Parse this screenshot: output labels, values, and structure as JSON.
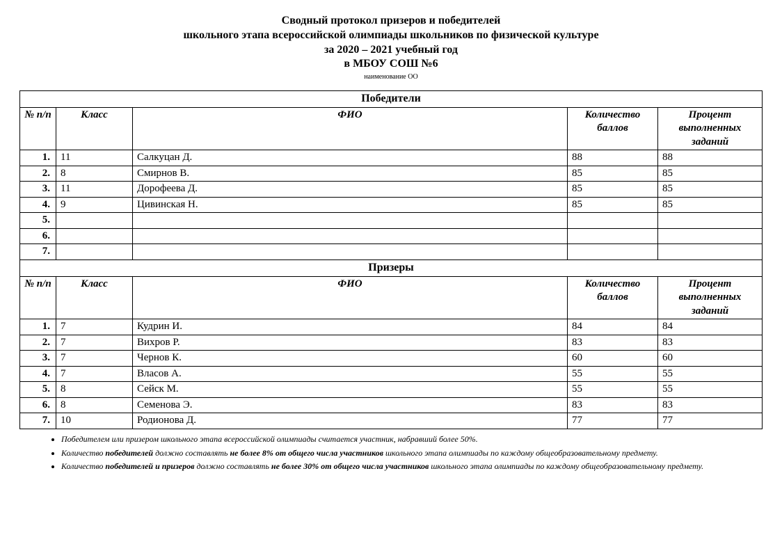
{
  "header": {
    "line1": "Сводный протокол призеров и победителей",
    "line2": "школьного этапа всероссийской олимпиады школьников по физической культуре",
    "line3": "за 2020 – 2021 учебный год",
    "line4": "в  МБОУ СОШ №6",
    "sub": "наименование ОО"
  },
  "columns": {
    "num": "№ п/п",
    "class": "Класс",
    "name": "ФИО",
    "score": "Количество баллов",
    "percent": "Процент выполненных заданий"
  },
  "sections": {
    "winners_title": "Победители",
    "prizers_title": "Призеры"
  },
  "winners": [
    {
      "n": "1.",
      "class": "11",
      "name": "Салкуцан Д.",
      "score": "88",
      "pct": "88"
    },
    {
      "n": "2.",
      "class": "8",
      "name": "Смирнов В.",
      "score": "85",
      "pct": "85"
    },
    {
      "n": "3.",
      "class": "11",
      "name": "Дорофеева Д.",
      "score": "85",
      "pct": "85"
    },
    {
      "n": "4.",
      "class": "9",
      "name": "Цивинская Н.",
      "score": "85",
      "pct": "85"
    },
    {
      "n": "5.",
      "class": "",
      "name": "",
      "score": "",
      "pct": ""
    },
    {
      "n": "6.",
      "class": "",
      "name": "",
      "score": "",
      "pct": ""
    },
    {
      "n": "7.",
      "class": "",
      "name": "",
      "score": "",
      "pct": ""
    }
  ],
  "prizers": [
    {
      "n": "1.",
      "class": "7",
      "name": "Кудрин И.",
      "score": "84",
      "pct": "84"
    },
    {
      "n": "2.",
      "class": "7",
      "name": "Вихров Р.",
      "score": "83",
      "pct": "83"
    },
    {
      "n": "3.",
      "class": "7",
      "name": "Чернов К.",
      "score": "60",
      "pct": "60"
    },
    {
      "n": "4.",
      "class": "7",
      "name": "Власов А.",
      "score": "55",
      "pct": "55"
    },
    {
      "n": "5.",
      "class": "8",
      "name": "Сейск М.",
      "score": "55",
      "pct": "55"
    },
    {
      "n": "6.",
      "class": "8",
      "name": "Семенова Э.",
      "score": "83",
      "pct": "83"
    },
    {
      "n": "7.",
      "class": "10",
      "name": "Родионова Д.",
      "score": "77",
      "pct": "77"
    }
  ],
  "notes": {
    "n1": "Победителем или призером школьного этапа всероссийской олимпиады  считается участник, набравший более 50%.",
    "n2a": "Количество ",
    "n2b": "победителей",
    "n2c": " должно составлять ",
    "n2d": "не более 8% от общего числа участников",
    "n2e": " школьного этапа олимпиады по каждому общеобразовательному предмету.",
    "n3a": "Количество ",
    "n3b": "победителей и призеров",
    "n3c": " должно составлять ",
    "n3d": "не более 30% от общего числа участников",
    "n3e": " школьного этапа олимпиады по каждому общеобразовательному предмету."
  },
  "styling": {
    "page_background": "#ffffff",
    "text_color": "#000000",
    "border_color": "#000000",
    "font_family": "Times New Roman",
    "header_fontsize": 16,
    "body_fontsize": 15,
    "notes_fontsize": 12,
    "col_widths": {
      "num": 52,
      "class": 110,
      "score": 130,
      "pct": 150
    }
  }
}
